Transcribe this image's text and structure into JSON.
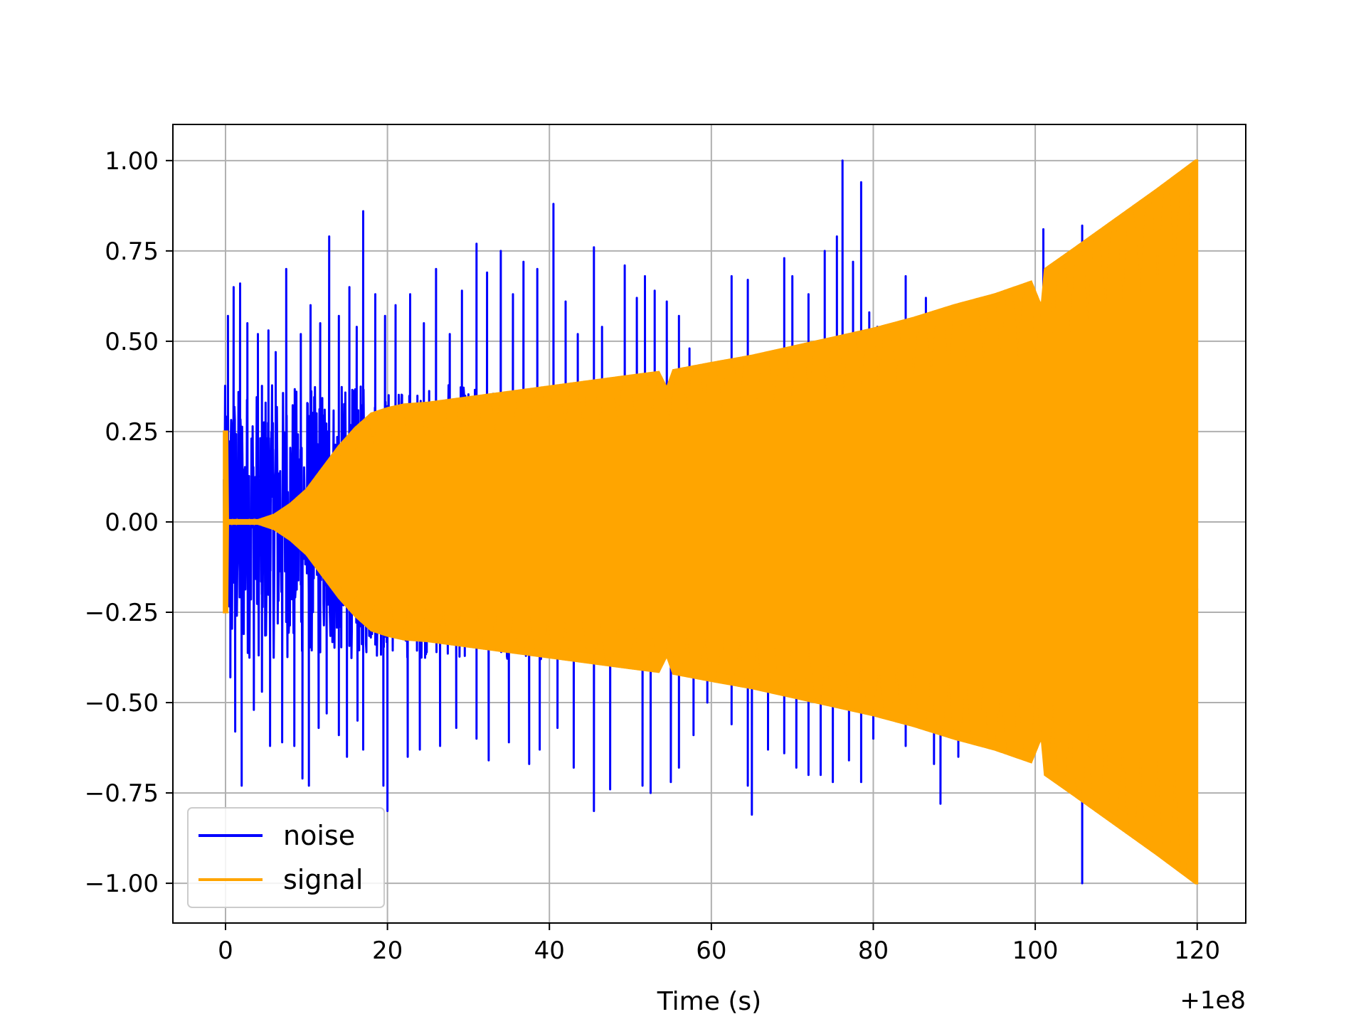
{
  "chart_data": {
    "type": "line",
    "title": "",
    "xlabel": "Time (s)",
    "ylabel": "",
    "x_offset_label": "+1e8",
    "xlim": [
      -6.5,
      126
    ],
    "ylim": [
      -1.11,
      1.1
    ],
    "xticks": [
      {
        "value": 0,
        "label": "0"
      },
      {
        "value": 20,
        "label": "20"
      },
      {
        "value": 40,
        "label": "40"
      },
      {
        "value": 60,
        "label": "60"
      },
      {
        "value": 80,
        "label": "80"
      },
      {
        "value": 100,
        "label": "100"
      },
      {
        "value": 120,
        "label": "120"
      }
    ],
    "yticks": [
      {
        "value": 1.0,
        "label": "1.00"
      },
      {
        "value": 0.75,
        "label": "0.75"
      },
      {
        "value": 0.5,
        "label": "0.50"
      },
      {
        "value": 0.25,
        "label": "0.25"
      },
      {
        "value": 0.0,
        "label": "0.00"
      },
      {
        "value": -0.25,
        "label": "−0.25"
      },
      {
        "value": -0.5,
        "label": "−0.50"
      },
      {
        "value": -0.75,
        "label": "−0.75"
      },
      {
        "value": -1.0,
        "label": "−1.00"
      }
    ],
    "grid": true,
    "legend_position": "lower-left",
    "series": [
      {
        "name": "noise",
        "color": "#0000ff",
        "x_range": [
          -0.2,
          120
        ],
        "base_amplitude": 0.38,
        "peaks": [
          {
            "x": 0.3,
            "y": 0.57
          },
          {
            "x": 1.0,
            "y": 0.65
          },
          {
            "x": 1.8,
            "y": 0.66
          },
          {
            "x": 2.7,
            "y": 0.55
          },
          {
            "x": 4.0,
            "y": 0.52
          },
          {
            "x": 5.3,
            "y": 0.53
          },
          {
            "x": 6.2,
            "y": 0.47
          },
          {
            "x": 7.5,
            "y": 0.7
          },
          {
            "x": 9.3,
            "y": 0.52
          },
          {
            "x": 10.5,
            "y": 0.6
          },
          {
            "x": 11.7,
            "y": 0.55
          },
          {
            "x": 12.8,
            "y": 0.79
          },
          {
            "x": 14.0,
            "y": 0.57
          },
          {
            "x": 15.3,
            "y": 0.65
          },
          {
            "x": 16.2,
            "y": 0.54
          },
          {
            "x": 17.0,
            "y": 0.86
          },
          {
            "x": 18.5,
            "y": 0.63
          },
          {
            "x": 19.7,
            "y": 0.57
          },
          {
            "x": 21.0,
            "y": 0.6
          },
          {
            "x": 22.8,
            "y": 0.63
          },
          {
            "x": 24.5,
            "y": 0.55
          },
          {
            "x": 26.0,
            "y": 0.7
          },
          {
            "x": 27.7,
            "y": 0.52
          },
          {
            "x": 29.2,
            "y": 0.64
          },
          {
            "x": 31.0,
            "y": 0.77
          },
          {
            "x": 32.3,
            "y": 0.69
          },
          {
            "x": 34.0,
            "y": 0.75
          },
          {
            "x": 35.5,
            "y": 0.63
          },
          {
            "x": 36.8,
            "y": 0.72
          },
          {
            "x": 38.5,
            "y": 0.7
          },
          {
            "x": 40.5,
            "y": 0.88
          },
          {
            "x": 42.0,
            "y": 0.61
          },
          {
            "x": 43.5,
            "y": 0.52
          },
          {
            "x": 45.5,
            "y": 0.76
          },
          {
            "x": 46.5,
            "y": 0.54
          },
          {
            "x": 49.3,
            "y": 0.71
          },
          {
            "x": 50.8,
            "y": 0.62
          },
          {
            "x": 51.8,
            "y": 0.68
          },
          {
            "x": 53.0,
            "y": 0.64
          },
          {
            "x": 54.5,
            "y": 0.61
          },
          {
            "x": 56.0,
            "y": 0.57
          },
          {
            "x": 57.3,
            "y": 0.48
          },
          {
            "x": 58.5,
            "y": 0.42
          },
          {
            "x": 62.5,
            "y": 0.68
          },
          {
            "x": 64.5,
            "y": 0.67
          },
          {
            "x": 69.0,
            "y": 0.73
          },
          {
            "x": 70.0,
            "y": 0.68
          },
          {
            "x": 72.0,
            "y": 0.63
          },
          {
            "x": 74.0,
            "y": 0.75
          },
          {
            "x": 75.5,
            "y": 0.79
          },
          {
            "x": 76.2,
            "y": 1.0
          },
          {
            "x": 77.5,
            "y": 0.72
          },
          {
            "x": 78.5,
            "y": 0.94
          },
          {
            "x": 79.5,
            "y": 0.58
          },
          {
            "x": 80.5,
            "y": 0.54
          },
          {
            "x": 84.0,
            "y": 0.68
          },
          {
            "x": 86.5,
            "y": 0.62
          },
          {
            "x": 101.0,
            "y": 0.81
          },
          {
            "x": 104.5,
            "y": 0.75
          },
          {
            "x": 105.8,
            "y": 0.82
          }
        ],
        "troughs": [
          {
            "x": 0.6,
            "y": -0.43
          },
          {
            "x": 1.2,
            "y": -0.58
          },
          {
            "x": 2.0,
            "y": -0.73
          },
          {
            "x": 3.5,
            "y": -0.52
          },
          {
            "x": 4.5,
            "y": -0.47
          },
          {
            "x": 5.5,
            "y": -0.62
          },
          {
            "x": 7.0,
            "y": -0.61
          },
          {
            "x": 8.5,
            "y": -0.62
          },
          {
            "x": 9.5,
            "y": -0.71
          },
          {
            "x": 10.3,
            "y": -0.73
          },
          {
            "x": 11.5,
            "y": -0.57
          },
          {
            "x": 12.5,
            "y": -0.53
          },
          {
            "x": 14.0,
            "y": -0.59
          },
          {
            "x": 15.0,
            "y": -0.65
          },
          {
            "x": 16.3,
            "y": -0.55
          },
          {
            "x": 17.0,
            "y": -0.63
          },
          {
            "x": 19.5,
            "y": -0.73
          },
          {
            "x": 20.0,
            "y": -0.8
          },
          {
            "x": 22.5,
            "y": -0.65
          },
          {
            "x": 24.0,
            "y": -0.63
          },
          {
            "x": 26.5,
            "y": -0.62
          },
          {
            "x": 28.5,
            "y": -0.57
          },
          {
            "x": 31.0,
            "y": -0.6
          },
          {
            "x": 32.5,
            "y": -0.66
          },
          {
            "x": 35.0,
            "y": -0.61
          },
          {
            "x": 37.5,
            "y": -0.67
          },
          {
            "x": 38.8,
            "y": -0.63
          },
          {
            "x": 41.0,
            "y": -0.57
          },
          {
            "x": 43.0,
            "y": -0.68
          },
          {
            "x": 45.5,
            "y": -0.8
          },
          {
            "x": 47.5,
            "y": -0.74
          },
          {
            "x": 51.5,
            "y": -0.73
          },
          {
            "x": 52.5,
            "y": -0.75
          },
          {
            "x": 55.0,
            "y": -0.72
          },
          {
            "x": 56.0,
            "y": -0.68
          },
          {
            "x": 57.8,
            "y": -0.59
          },
          {
            "x": 59.5,
            "y": -0.5
          },
          {
            "x": 62.5,
            "y": -0.56
          },
          {
            "x": 64.5,
            "y": -0.73
          },
          {
            "x": 65.0,
            "y": -0.81
          },
          {
            "x": 67.0,
            "y": -0.63
          },
          {
            "x": 69.0,
            "y": -0.64
          },
          {
            "x": 70.5,
            "y": -0.68
          },
          {
            "x": 72.0,
            "y": -0.7
          },
          {
            "x": 73.5,
            "y": -0.7
          },
          {
            "x": 75.0,
            "y": -0.72
          },
          {
            "x": 77.0,
            "y": -0.66
          },
          {
            "x": 78.5,
            "y": -0.72
          },
          {
            "x": 80.0,
            "y": -0.6
          },
          {
            "x": 84.0,
            "y": -0.62
          },
          {
            "x": 87.5,
            "y": -0.67
          },
          {
            "x": 88.3,
            "y": -0.78
          },
          {
            "x": 90.5,
            "y": -0.65
          },
          {
            "x": 105.8,
            "y": -1.0
          }
        ]
      },
      {
        "name": "signal",
        "color": "#ffa500",
        "x_range": [
          -0.2,
          120
        ],
        "envelope": [
          {
            "x": 0.0,
            "y": 0.25
          },
          {
            "x": 0.25,
            "y": 0.25
          },
          {
            "x": 0.3,
            "y": 0.005
          },
          {
            "x": 4.0,
            "y": 0.005
          },
          {
            "x": 6.0,
            "y": 0.02
          },
          {
            "x": 8.0,
            "y": 0.05
          },
          {
            "x": 10.0,
            "y": 0.09
          },
          {
            "x": 12.0,
            "y": 0.15
          },
          {
            "x": 14.0,
            "y": 0.21
          },
          {
            "x": 16.0,
            "y": 0.26
          },
          {
            "x": 18.0,
            "y": 0.3
          },
          {
            "x": 20.0,
            "y": 0.315
          },
          {
            "x": 22.0,
            "y": 0.325
          },
          {
            "x": 25.0,
            "y": 0.33
          },
          {
            "x": 30.0,
            "y": 0.345
          },
          {
            "x": 35.0,
            "y": 0.36
          },
          {
            "x": 40.0,
            "y": 0.375
          },
          {
            "x": 45.0,
            "y": 0.39
          },
          {
            "x": 50.0,
            "y": 0.405
          },
          {
            "x": 53.5,
            "y": 0.415
          },
          {
            "x": 54.5,
            "y": 0.37
          },
          {
            "x": 55.3,
            "y": 0.42
          },
          {
            "x": 60.0,
            "y": 0.44
          },
          {
            "x": 65.0,
            "y": 0.46
          },
          {
            "x": 70.0,
            "y": 0.485
          },
          {
            "x": 75.0,
            "y": 0.51
          },
          {
            "x": 80.0,
            "y": 0.535
          },
          {
            "x": 85.0,
            "y": 0.565
          },
          {
            "x": 90.0,
            "y": 0.6
          },
          {
            "x": 95.0,
            "y": 0.63
          },
          {
            "x": 99.5,
            "y": 0.665
          },
          {
            "x": 100.5,
            "y": 0.61
          },
          {
            "x": 100.8,
            "y": 0.6
          },
          {
            "x": 101.2,
            "y": 0.7
          },
          {
            "x": 105.0,
            "y": 0.76
          },
          {
            "x": 110.0,
            "y": 0.84
          },
          {
            "x": 115.0,
            "y": 0.92
          },
          {
            "x": 119.8,
            "y": 1.0
          },
          {
            "x": 120.0,
            "y": 1.0
          }
        ]
      }
    ]
  }
}
